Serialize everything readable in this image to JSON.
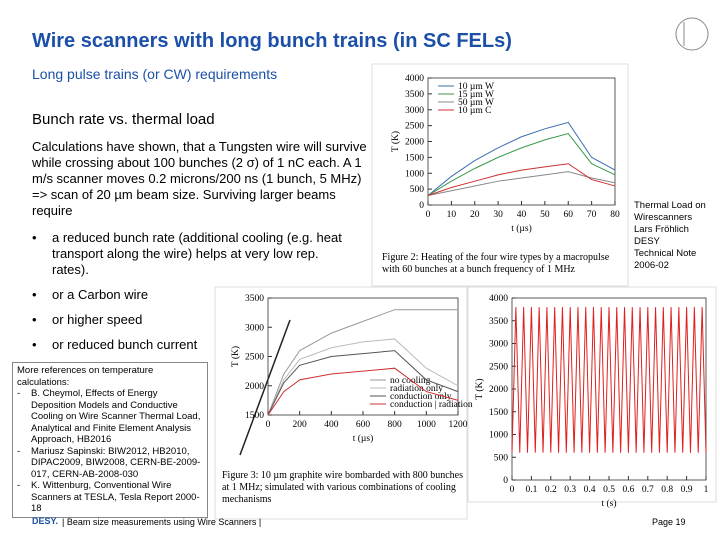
{
  "header": {
    "title": "Wire scanners with long bunch trains (in SC FELs)",
    "subtitle": "Long pulse trains (or CW) requirements"
  },
  "body": {
    "heading": "Bunch rate vs. thermal load",
    "paragraph": "Calculations have shown, that a Tungsten wire will survive while crossing about 100 bunches (2 σ) of 1 nC each. A 1 m/s scanner moves 0.2 microns/200 ns (1 bunch, 5 MHz) => scan of 20 µm beam size. Surviving larger beams require",
    "bullets": [
      "a reduced bunch rate (additional cooling (e.g. heat transport along the wire) helps at very low rep. rates).",
      "or a Carbon wire",
      "or higher speed",
      "or reduced bunch current"
    ]
  },
  "references": {
    "intro": "More references on temperature calculations:",
    "items": [
      "B. Cheymol, Effects of Energy Deposition Models and Conductive Cooling on Wire Scanner Thermal Load, Analytical and Finite Element Analysis Approach, HB2016",
      "Mariusz Sapinski: BIW2012, HB2010, DIPAC2009, BIW2008, CERN-BE-2009-017, CERN-AB-2008-030",
      "K. Wittenburg, Conventional Wire Scanners at TESLA, Tesla Report 2000-18"
    ]
  },
  "side_note": [
    "Thermal Load on Wirescanners",
    "Lars Fröhlich",
    "DESY",
    "Technical Note 2006-02"
  ],
  "figures": [
    {
      "type": "line",
      "caption": "Figure 2: Heating of the four wire types by a macropulse with 60 bunches at a bunch frequency of 1 MHz",
      "x_label": "t (µs)",
      "y_label": "T (K)",
      "xlim": [
        0,
        80
      ],
      "ylim": [
        0,
        4000
      ],
      "xticks": [
        0,
        10,
        20,
        30,
        40,
        50,
        60,
        70,
        80
      ],
      "yticks": [
        0,
        500,
        1000,
        1500,
        2000,
        2500,
        3000,
        3500,
        4000
      ],
      "x": [
        0,
        10,
        20,
        30,
        40,
        50,
        60,
        70,
        80
      ],
      "series": [
        {
          "name": "10 µm W",
          "color": "#3c6fb0",
          "values": [
            300,
            900,
            1400,
            1800,
            2150,
            2400,
            2600,
            1500,
            1100
          ]
        },
        {
          "name": "15 µm W",
          "color": "#3a9a4a",
          "values": [
            300,
            750,
            1150,
            1500,
            1800,
            2050,
            2250,
            1300,
            950
          ]
        },
        {
          "name": "50 µm W",
          "color": "#888888",
          "values": [
            300,
            450,
            600,
            750,
            850,
            950,
            1050,
            850,
            700
          ]
        },
        {
          "name": "10 µm C",
          "color": "#d03030",
          "values": [
            300,
            550,
            750,
            950,
            1100,
            1200,
            1300,
            800,
            600
          ]
        }
      ]
    },
    {
      "type": "line",
      "caption": "Figure 3: 10 µm graphite wire bombarded with 800 bunches at 1 MHz; simulated with various combinations of cooling mechanisms",
      "x_label": "t (µs)",
      "y_label": "T (K)",
      "xlim": [
        0,
        1200
      ],
      "ylim": [
        1500,
        3500
      ],
      "xticks": [
        0,
        200,
        400,
        600,
        800,
        1000,
        1200
      ],
      "yticks": [
        1500,
        2000,
        2500,
        3000,
        3500
      ],
      "x": [
        0,
        100,
        200,
        400,
        600,
        800,
        1000,
        1200
      ],
      "series": [
        {
          "name": "no cooling",
          "color": "#999999",
          "values": [
            1500,
            2200,
            2600,
            2900,
            3100,
            3300,
            3300,
            3300
          ]
        },
        {
          "name": "radiation only",
          "color": "#bbbbbb",
          "values": [
            1500,
            2100,
            2450,
            2650,
            2750,
            2800,
            2300,
            2000
          ]
        },
        {
          "name": "conduction only",
          "color": "#555555",
          "values": [
            1500,
            2050,
            2350,
            2500,
            2550,
            2600,
            2100,
            1900
          ]
        },
        {
          "name": "conduction | radiation",
          "color": "#d03030",
          "values": [
            1500,
            1900,
            2100,
            2200,
            2250,
            2300,
            1900,
            1750
          ]
        }
      ]
    },
    {
      "type": "line",
      "x_label": "t (s)",
      "y_label": "T (K)",
      "xlim": [
        0,
        1
      ],
      "ylim": [
        0,
        4000
      ],
      "xticks": [
        0,
        0.1,
        0.2,
        0.3,
        0.4,
        0.5,
        0.6,
        0.7,
        0.8,
        0.9,
        1
      ],
      "yticks": [
        0,
        500,
        1000,
        1500,
        2000,
        2500,
        3000,
        3500,
        4000
      ],
      "x": [
        0,
        0.02,
        0.04,
        0.06,
        0.08,
        0.1,
        0.12,
        0.14,
        0.16,
        0.18,
        0.2,
        0.22,
        0.24,
        0.26,
        0.28,
        0.3,
        0.32,
        0.34,
        0.36,
        0.38,
        0.4,
        0.42,
        0.44,
        0.46,
        0.48,
        0.5,
        0.52,
        0.54,
        0.56,
        0.58,
        0.6,
        0.62,
        0.64,
        0.66,
        0.68,
        0.7,
        0.72,
        0.74,
        0.76,
        0.78,
        0.8,
        0.82,
        0.84,
        0.86,
        0.88,
        0.9,
        0.92,
        0.94,
        0.96,
        0.98,
        1
      ],
      "series": [
        {
          "color": "#e02020",
          "values": [
            600,
            3800,
            600,
            3800,
            600,
            3800,
            600,
            3800,
            600,
            3800,
            600,
            3800,
            600,
            3800,
            600,
            3800,
            600,
            3800,
            600,
            3800,
            600,
            3800,
            600,
            3800,
            600,
            3800,
            600,
            3800,
            600,
            3800,
            600,
            3800,
            600,
            3800,
            600,
            3800,
            600,
            3800,
            600,
            3800,
            600,
            3800,
            600,
            3800,
            600,
            3800,
            600,
            3800,
            600,
            3800,
            600
          ]
        }
      ]
    }
  ],
  "footer": {
    "logo": "DESY.",
    "text": "| Beam size measurements using Wire Scanners |",
    "page": "Page 19"
  }
}
